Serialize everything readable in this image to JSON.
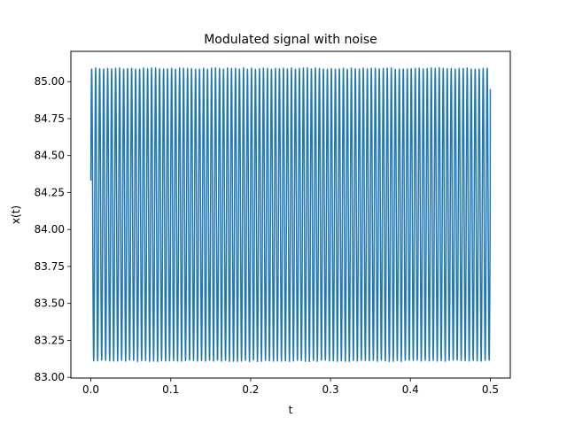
{
  "chart_data": {
    "type": "line",
    "title": "Modulated signal with noise",
    "xlabel": "t",
    "ylabel": "x(t)",
    "xlim": [
      -0.025,
      0.525
    ],
    "ylim": [
      82.995,
      85.205
    ],
    "xticks": [
      0.0,
      0.1,
      0.2,
      0.3,
      0.4,
      0.5
    ],
    "xtick_labels": [
      "0.0",
      "0.1",
      "0.2",
      "0.3",
      "0.4",
      "0.5"
    ],
    "yticks": [
      83.0,
      83.25,
      83.5,
      83.75,
      84.0,
      84.25,
      84.5,
      84.75,
      85.0
    ],
    "ytick_labels": [
      "83.00",
      "83.25",
      "83.50",
      "83.75",
      "84.00",
      "84.25",
      "84.50",
      "84.75",
      "85.00"
    ],
    "grid": false,
    "legend": "none",
    "series": [
      {
        "color": "#1f77b4",
        "signal": {
          "t_start": 0.0,
          "t_end": 0.5,
          "offset": 84.1,
          "amplitude": 0.99,
          "start_value": 84.33,
          "end_value": 84.95,
          "cycles": 100
        }
      }
    ]
  }
}
